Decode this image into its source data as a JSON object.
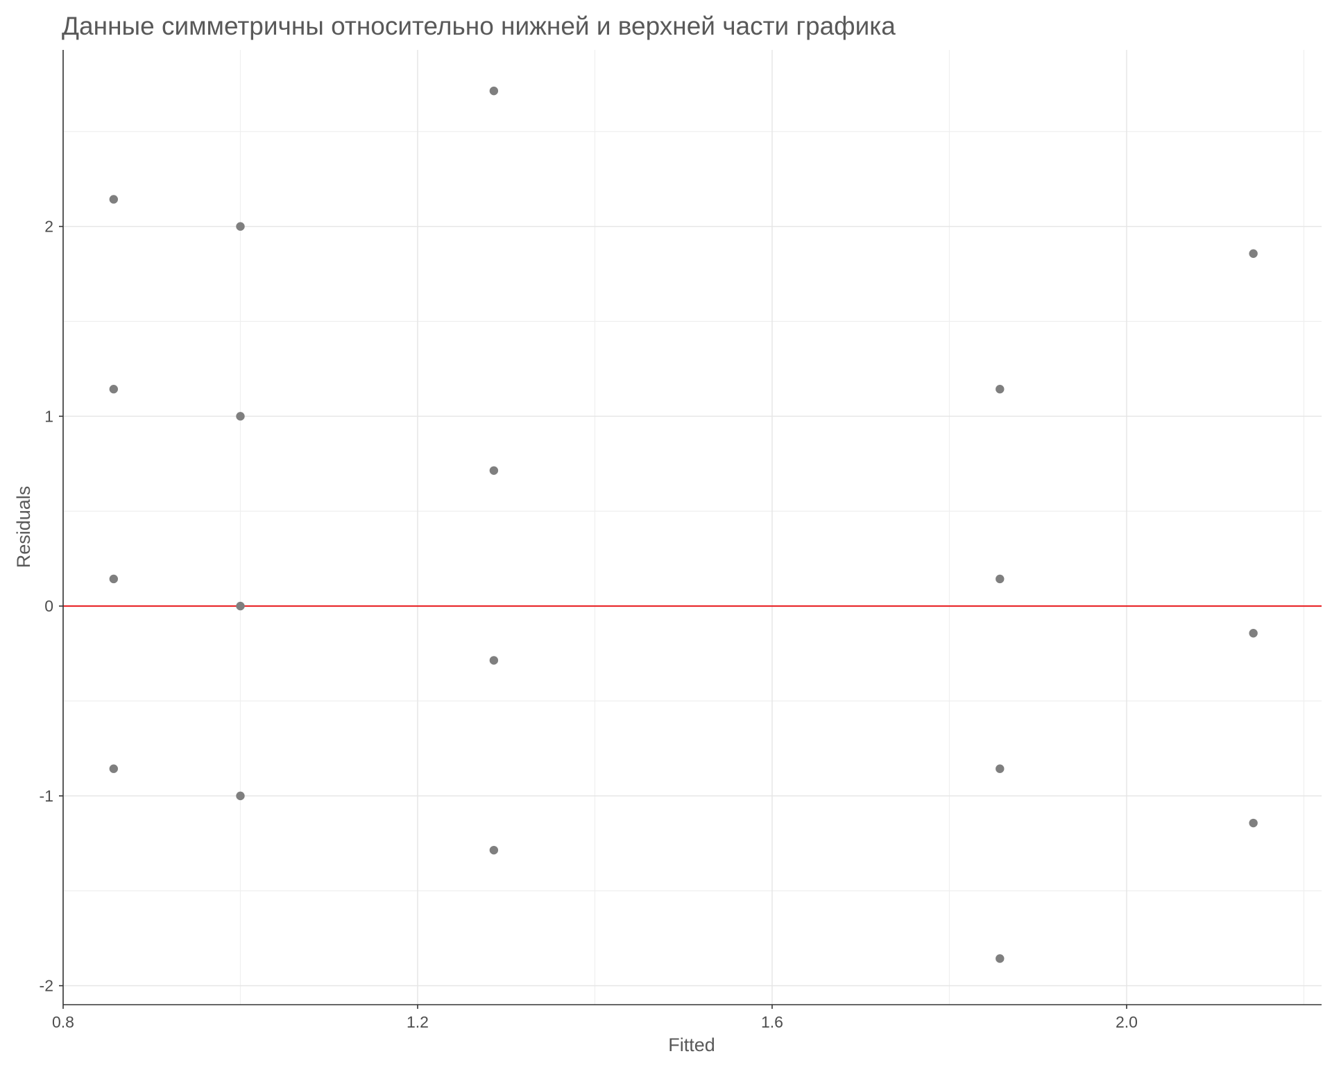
{
  "chart_data": {
    "type": "scatter",
    "title": "Данные симметричны относительно нижней и верхней части графика",
    "xlabel": "Fitted",
    "ylabel": "Residuals",
    "xlim": [
      0.8,
      2.22
    ],
    "ylim": [
      -2.1,
      2.93
    ],
    "x_ticks": [
      0.8,
      1.2,
      1.6,
      2.0
    ],
    "x_tick_labels": [
      "0.8",
      "1.2",
      "1.6",
      "2.0"
    ],
    "x_minor_ticks": [
      1.0,
      1.4,
      1.8,
      2.2
    ],
    "y_ticks": [
      -2,
      -1,
      0,
      1,
      2
    ],
    "y_tick_labels": [
      "-2",
      "-1",
      "0",
      "1",
      "2"
    ],
    "y_minor_ticks": [
      -1.5,
      -0.5,
      0.5,
      1.5,
      2.5
    ],
    "grid": true,
    "reference_line": {
      "y": 0,
      "color": "#e8191c"
    },
    "point_color": "#7f7f7f",
    "points": [
      {
        "x": 0.857,
        "y": 2.143
      },
      {
        "x": 0.857,
        "y": 1.143
      },
      {
        "x": 0.857,
        "y": 0.143
      },
      {
        "x": 0.857,
        "y": -0.857
      },
      {
        "x": 1.0,
        "y": 2.0
      },
      {
        "x": 1.0,
        "y": 1.0
      },
      {
        "x": 1.0,
        "y": 0.0
      },
      {
        "x": 1.0,
        "y": -1.0
      },
      {
        "x": 1.286,
        "y": 2.714
      },
      {
        "x": 1.286,
        "y": 0.714
      },
      {
        "x": 1.286,
        "y": -0.286
      },
      {
        "x": 1.286,
        "y": -1.286
      },
      {
        "x": 1.857,
        "y": 1.143
      },
      {
        "x": 1.857,
        "y": 0.143
      },
      {
        "x": 1.857,
        "y": -0.857
      },
      {
        "x": 1.857,
        "y": -1.857
      },
      {
        "x": 2.143,
        "y": 1.857
      },
      {
        "x": 2.143,
        "y": -0.143
      },
      {
        "x": 2.143,
        "y": -1.143
      }
    ]
  }
}
